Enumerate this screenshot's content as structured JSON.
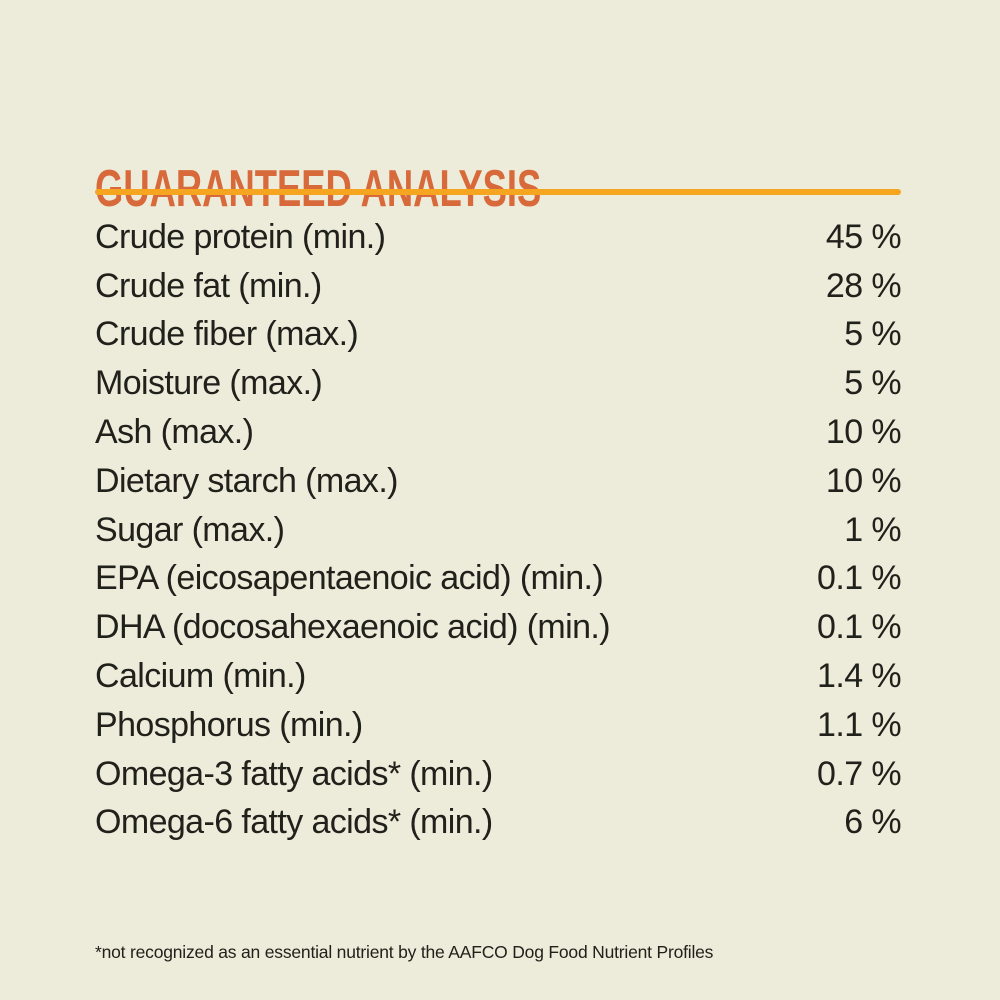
{
  "page": {
    "title": "GUARANTEED ANALYSIS",
    "footnote": "*not recognized as an essential nutrient by the AAFCO Dog Food Nutrient Profiles"
  },
  "colors": {
    "background": "#edebd9",
    "heading_orange": "#d7693a",
    "rule_amber": "#f5a51f",
    "text": "#21211c"
  },
  "table": {
    "rows": [
      {
        "label": "Crude protein (min.)",
        "value": "45 %"
      },
      {
        "label": "Crude fat (min.)",
        "value": "28 %"
      },
      {
        "label": "Crude fiber (max.)",
        "value": "5 %"
      },
      {
        "label": "Moisture (max.)",
        "value": "5 %"
      },
      {
        "label": "Ash (max.)",
        "value": "10 %"
      },
      {
        "label": "Dietary starch (max.)",
        "value": "10 %"
      },
      {
        "label": "Sugar (max.)",
        "value": "1 %"
      },
      {
        "label": "EPA (eicosapentaenoic acid) (min.)",
        "value": "0.1 %"
      },
      {
        "label": "DHA (docosahexaenoic acid) (min.)",
        "value": "0.1 %"
      },
      {
        "label": "Calcium (min.)",
        "value": "1.4 %"
      },
      {
        "label": "Phosphorus (min.)",
        "value": "1.1 %"
      },
      {
        "label": "Omega-3 fatty acids* (min.)",
        "value": "0.7 %"
      },
      {
        "label": "Omega-6 fatty acids* (min.)",
        "value": "6 %"
      }
    ]
  }
}
